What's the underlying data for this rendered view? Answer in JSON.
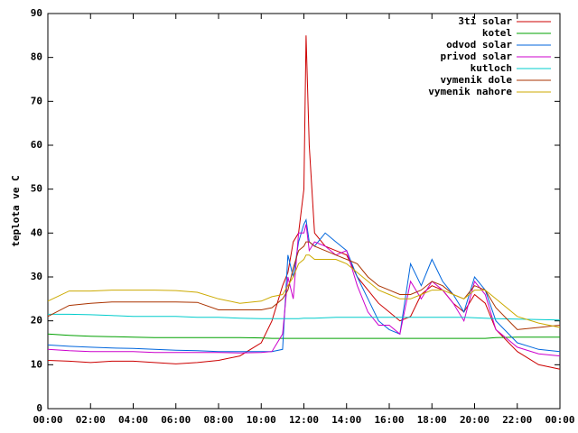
{
  "chart_data": {
    "type": "line",
    "y_label": "teplota ve C",
    "x": [
      0,
      1,
      2,
      3,
      4,
      5,
      6,
      7,
      8,
      9,
      10,
      10.5,
      11,
      11.25,
      11.5,
      11.75,
      12,
      12.1,
      12.25,
      12.5,
      13,
      13.5,
      14,
      14.5,
      15,
      15.5,
      16,
      16.5,
      17,
      17.5,
      18,
      18.5,
      19,
      19.5,
      20,
      20.5,
      21,
      22,
      23,
      24
    ],
    "series": [
      {
        "name": "3ti solar",
        "color": "#cc0000",
        "values": [
          11,
          10.8,
          10.5,
          10.8,
          10.8,
          10.5,
          10.2,
          10.5,
          11,
          12,
          15,
          20,
          28,
          31,
          38,
          40,
          50,
          85,
          60,
          40,
          37,
          36,
          35,
          30,
          27,
          24,
          22,
          20,
          21,
          26,
          28,
          27,
          24,
          22,
          26,
          24,
          18,
          13,
          10,
          9
        ]
      },
      {
        "name": "kotel",
        "color": "#00a000",
        "values": [
          17,
          16.7,
          16.5,
          16.4,
          16.3,
          16.2,
          16.2,
          16.2,
          16.2,
          16.2,
          16.1,
          16,
          16,
          16,
          16,
          16,
          16,
          16,
          16,
          16,
          16,
          16,
          16,
          16,
          16,
          16,
          16,
          16,
          16,
          16,
          16,
          16,
          16,
          16,
          16,
          16,
          16.2,
          16.3,
          16.3,
          16.3
        ]
      },
      {
        "name": "odvod solar",
        "color": "#0066dd",
        "values": [
          14.5,
          14.2,
          14,
          13.8,
          13.7,
          13.5,
          13.3,
          13.2,
          13,
          13,
          13,
          13,
          13.5,
          35,
          30,
          38,
          42,
          43,
          38,
          37,
          40,
          38,
          36,
          30,
          25,
          20,
          18,
          17,
          33,
          28,
          34,
          29,
          26,
          22,
          30,
          27,
          20,
          15,
          13.5,
          13
        ]
      },
      {
        "name": "privod solar",
        "color": "#cc00cc",
        "values": [
          13.5,
          13.2,
          13,
          13,
          13,
          12.8,
          12.8,
          12.8,
          12.8,
          12.7,
          12.8,
          13,
          17,
          30,
          25,
          40,
          40,
          42,
          36,
          38,
          37,
          35,
          36,
          28,
          22,
          19,
          19,
          17,
          29,
          25,
          29,
          27,
          24,
          20,
          29,
          26,
          18,
          14,
          12.5,
          12
        ]
      },
      {
        "name": "kutloch",
        "color": "#00cccc",
        "values": [
          21.5,
          21.5,
          21.4,
          21.2,
          21,
          21,
          21,
          20.8,
          20.8,
          20.6,
          20.5,
          20.5,
          20.5,
          20.5,
          20.5,
          20.5,
          20.6,
          20.6,
          20.6,
          20.6,
          20.7,
          20.8,
          20.8,
          20.8,
          20.8,
          20.8,
          20.8,
          20.8,
          20.8,
          20.8,
          20.8,
          20.8,
          20.8,
          20.8,
          20.7,
          20.6,
          20.5,
          20.4,
          20.3,
          20.2
        ]
      },
      {
        "name": "vymenik dole",
        "color": "#aa3300",
        "values": [
          21,
          23.5,
          24,
          24.3,
          24.3,
          24.3,
          24.3,
          24.2,
          22.5,
          22.5,
          22.5,
          23,
          25,
          27,
          32,
          36,
          37,
          38,
          38,
          37,
          36,
          35,
          34,
          33,
          30,
          28,
          27,
          26,
          26,
          27,
          29,
          28,
          26,
          25,
          28,
          27,
          23,
          18,
          18.5,
          19
        ]
      },
      {
        "name": "vymenik nahore",
        "color": "#ccaa00",
        "values": [
          24.5,
          26.8,
          26.8,
          27,
          27,
          27,
          26.9,
          26.5,
          25,
          24,
          24.5,
          25.5,
          26,
          28,
          30,
          33,
          34,
          35,
          35,
          34,
          34,
          34,
          33,
          31,
          29,
          27,
          26,
          25,
          25,
          26,
          27,
          27,
          26,
          25,
          27,
          27,
          25,
          21,
          19.5,
          18.5
        ]
      }
    ],
    "xlim": [
      0,
      24
    ],
    "xticks": [
      {
        "value": 0,
        "label": "00:00"
      },
      {
        "value": 2,
        "label": "02:00"
      },
      {
        "value": 4,
        "label": "04:00"
      },
      {
        "value": 6,
        "label": "06:00"
      },
      {
        "value": 8,
        "label": "08:00"
      },
      {
        "value": 10,
        "label": "10:00"
      },
      {
        "value": 12,
        "label": "12:00"
      },
      {
        "value": 14,
        "label": "14:00"
      },
      {
        "value": 16,
        "label": "16:00"
      },
      {
        "value": 18,
        "label": "18:00"
      },
      {
        "value": 20,
        "label": "20:00"
      },
      {
        "value": 22,
        "label": "22:00"
      },
      {
        "value": 24,
        "label": "00:00"
      }
    ],
    "ylim": [
      0,
      90
    ],
    "yticks": [
      0,
      10,
      20,
      30,
      40,
      50,
      60,
      70,
      80,
      90
    ],
    "grid": false,
    "legend": "top-right"
  }
}
